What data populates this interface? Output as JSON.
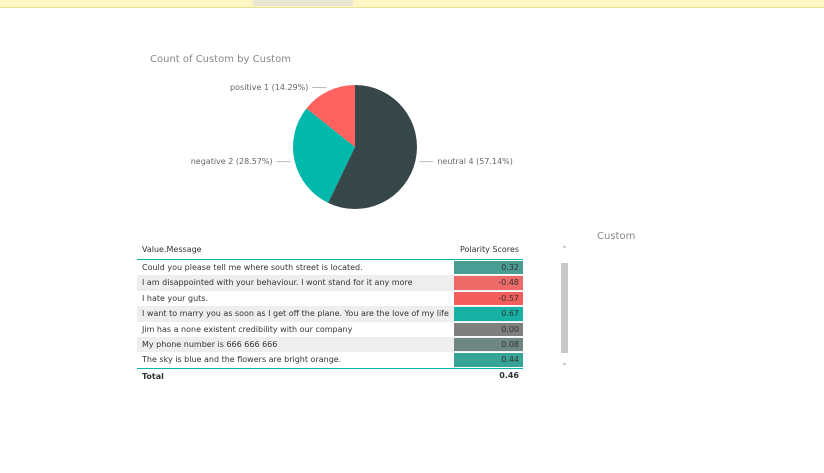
{
  "chart_data": {
    "type": "pie",
    "title": "Count of Custom by Custom",
    "values": [
      4,
      2,
      1
    ],
    "value_labels": [
      "neutral 4 (57.14%)",
      "negative 2 (28.57%)",
      "positive 1 (14.29%)"
    ],
    "colors": [
      "#374649",
      "#01b8aa",
      "#fd625e"
    ]
  },
  "table": {
    "header": [
      "Value.Message",
      "Polarity Scores"
    ],
    "rows": [
      [
        "Could you please tell me where south street is located.",
        "0.32"
      ],
      [
        "I am disappointed with your behaviour. I wont stand for it any more",
        "-0.48"
      ],
      [
        "I hate your guts.",
        "-0.57"
      ],
      [
        "I want to marry you as soon as I get off the plane. You are the love of my life",
        "0.67"
      ],
      [
        "Jim has a none existent credibility with our company",
        "0.00"
      ],
      [
        "My phone number is 666 666 666",
        "0.08"
      ],
      [
        "The sky is blue and the flowers are bright orange.",
        "0.44"
      ]
    ],
    "row_colors": [
      "#4a9d93",
      "#ee6a68",
      "#f35d5b",
      "#16b1a3",
      "#7f7f7f",
      "#6f8784",
      "#36a597"
    ],
    "total": [
      "Total",
      "0.46"
    ]
  },
  "slicer": {
    "title": "Custom"
  }
}
